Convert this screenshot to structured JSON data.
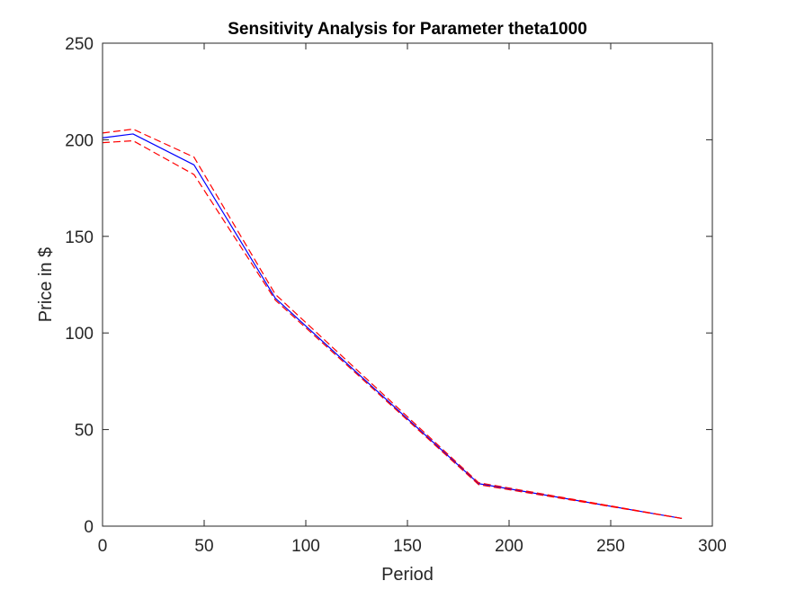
{
  "chart_data": {
    "type": "line",
    "title": "Sensitivity Analysis for Parameter theta1000",
    "xlabel": "Period",
    "ylabel": "Price in $",
    "xlim": [
      0,
      300
    ],
    "ylim": [
      0,
      250
    ],
    "xticks": [
      0,
      50,
      100,
      150,
      200,
      250,
      300
    ],
    "yticks": [
      0,
      50,
      100,
      150,
      200,
      250
    ],
    "grid": false,
    "legend": "none",
    "x": [
      0,
      15,
      45,
      85,
      185,
      285
    ],
    "series": [
      {
        "color": "#0000ff",
        "style": "solid",
        "values": [
          201,
          203,
          187,
          118,
          22,
          4
        ]
      },
      {
        "color": "#ff0000",
        "style": "dashed",
        "values": [
          203.5,
          205.5,
          191,
          120,
          22.5,
          4
        ]
      },
      {
        "color": "#ff0000",
        "style": "dashed",
        "values": [
          198.5,
          199.5,
          182,
          117,
          21.5,
          4
        ]
      }
    ]
  }
}
